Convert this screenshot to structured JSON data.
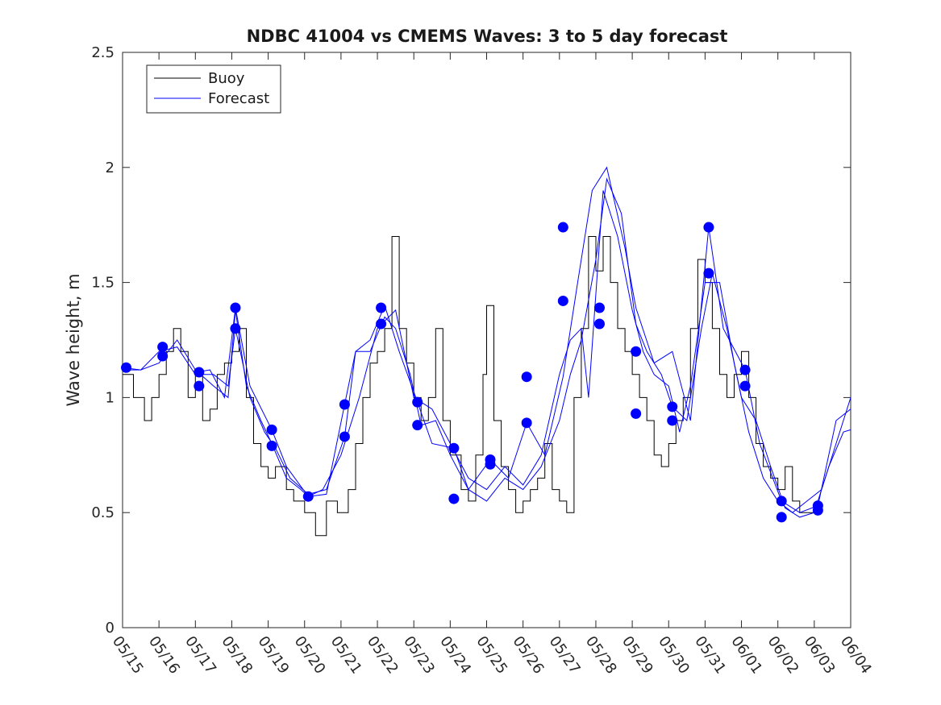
{
  "chart_data": {
    "type": "line",
    "title": "NDBC 41004 vs CMEMS Waves: 3 to 5 day forecast",
    "xlabel": "",
    "ylabel": "Wave height, m",
    "x_start": "05/15",
    "x_end": "06/04",
    "xlim_days": [
      0,
      20
    ],
    "ylim": [
      0,
      2.5
    ],
    "y_ticks": [
      0,
      0.5,
      1,
      1.5,
      2,
      2.5
    ],
    "y_tick_labels": [
      "0",
      "0.5",
      "1",
      "1.5",
      "2",
      "2.5"
    ],
    "x_tick_labels": [
      "05/15",
      "05/16",
      "05/17",
      "05/18",
      "05/19",
      "05/20",
      "05/21",
      "05/22",
      "05/23",
      "05/24",
      "05/25",
      "05/26",
      "05/27",
      "05/28",
      "05/29",
      "05/30",
      "05/31",
      "06/01",
      "06/02",
      "06/03",
      "06/04"
    ],
    "grid": false,
    "legend": {
      "placement": "top-left",
      "entries": [
        {
          "label": "Buoy",
          "color": "#000000"
        },
        {
          "label": "Forecast",
          "color": "#0000ff"
        }
      ]
    },
    "colors": {
      "buoy": "#000000",
      "forecast": "#0000ff"
    },
    "buoy": {
      "name": "Buoy",
      "points": [
        [
          0,
          1.1
        ],
        [
          0.3,
          1.0
        ],
        [
          0.6,
          0.9
        ],
        [
          0.8,
          1.0
        ],
        [
          1.0,
          1.1
        ],
        [
          1.2,
          1.2
        ],
        [
          1.4,
          1.3
        ],
        [
          1.6,
          1.2
        ],
        [
          1.8,
          1.0
        ],
        [
          2.0,
          1.1
        ],
        [
          2.2,
          0.9
        ],
        [
          2.4,
          0.95
        ],
        [
          2.6,
          1.1
        ],
        [
          2.8,
          1.15
        ],
        [
          3.0,
          1.2
        ],
        [
          3.2,
          1.3
        ],
        [
          3.4,
          1.0
        ],
        [
          3.6,
          0.8
        ],
        [
          3.8,
          0.7
        ],
        [
          4.0,
          0.65
        ],
        [
          4.2,
          0.7
        ],
        [
          4.5,
          0.6
        ],
        [
          4.7,
          0.55
        ],
        [
          5.0,
          0.5
        ],
        [
          5.3,
          0.4
        ],
        [
          5.6,
          0.55
        ],
        [
          5.9,
          0.5
        ],
        [
          6.2,
          0.6
        ],
        [
          6.4,
          0.8
        ],
        [
          6.6,
          1.0
        ],
        [
          6.8,
          1.15
        ],
        [
          7.0,
          1.2
        ],
        [
          7.2,
          1.3
        ],
        [
          7.4,
          1.7
        ],
        [
          7.6,
          1.3
        ],
        [
          7.8,
          1.15
        ],
        [
          8.0,
          1.0
        ],
        [
          8.2,
          0.9
        ],
        [
          8.4,
          1.0
        ],
        [
          8.6,
          1.3
        ],
        [
          8.8,
          0.9
        ],
        [
          9.0,
          0.75
        ],
        [
          9.3,
          0.6
        ],
        [
          9.5,
          0.55
        ],
        [
          9.7,
          0.75
        ],
        [
          9.9,
          1.1
        ],
        [
          10.0,
          1.4
        ],
        [
          10.2,
          0.9
        ],
        [
          10.4,
          0.7
        ],
        [
          10.6,
          0.6
        ],
        [
          10.8,
          0.5
        ],
        [
          11.0,
          0.55
        ],
        [
          11.2,
          0.6
        ],
        [
          11.4,
          0.65
        ],
        [
          11.6,
          0.8
        ],
        [
          11.8,
          0.6
        ],
        [
          12.0,
          0.55
        ],
        [
          12.2,
          0.5
        ],
        [
          12.4,
          1.0
        ],
        [
          12.6,
          1.3
        ],
        [
          12.8,
          1.7
        ],
        [
          13.0,
          1.55
        ],
        [
          13.2,
          1.7
        ],
        [
          13.4,
          1.5
        ],
        [
          13.6,
          1.3
        ],
        [
          13.8,
          1.2
        ],
        [
          14.0,
          1.1
        ],
        [
          14.2,
          1.0
        ],
        [
          14.4,
          0.9
        ],
        [
          14.6,
          0.75
        ],
        [
          14.8,
          0.7
        ],
        [
          15.0,
          0.8
        ],
        [
          15.2,
          0.9
        ],
        [
          15.4,
          1.0
        ],
        [
          15.6,
          1.3
        ],
        [
          15.8,
          1.6
        ],
        [
          16.0,
          1.5
        ],
        [
          16.2,
          1.3
        ],
        [
          16.4,
          1.1
        ],
        [
          16.6,
          1.0
        ],
        [
          16.8,
          1.1
        ],
        [
          17.0,
          1.2
        ],
        [
          17.2,
          1.0
        ],
        [
          17.4,
          0.8
        ],
        [
          17.6,
          0.7
        ],
        [
          17.8,
          0.65
        ],
        [
          18.0,
          0.6
        ],
        [
          18.2,
          0.7
        ],
        [
          18.4,
          0.55
        ],
        [
          18.6,
          0.5
        ],
        [
          18.8,
          0.5
        ],
        [
          19.0,
          0.5
        ],
        [
          19.2,
          0.5
        ]
      ]
    },
    "forecast_series": [
      {
        "name": "Forecast",
        "points": [
          [
            0,
            1.13
          ],
          [
            0.5,
            1.12
          ],
          [
            1.0,
            1.15
          ],
          [
            1.5,
            1.25
          ],
          [
            2.0,
            1.12
          ],
          [
            2.5,
            1.05
          ],
          [
            2.9,
            1.0
          ],
          [
            3.1,
            1.38
          ],
          [
            3.4,
            1.05
          ],
          [
            3.8,
            0.9
          ],
          [
            4.1,
            0.8
          ],
          [
            4.5,
            0.65
          ],
          [
            4.9,
            0.6
          ],
          [
            5.1,
            0.57
          ],
          [
            5.5,
            0.6
          ],
          [
            6.0,
            0.75
          ],
          [
            6.5,
            1.0
          ],
          [
            7.0,
            1.3
          ],
          [
            7.5,
            1.38
          ],
          [
            8.0,
            1.0
          ],
          [
            8.2,
            0.98
          ],
          [
            8.5,
            0.95
          ],
          [
            9.0,
            0.8
          ],
          [
            9.5,
            0.65
          ],
          [
            10.0,
            0.6
          ],
          [
            10.5,
            0.7
          ],
          [
            11.0,
            0.62
          ],
          [
            11.5,
            0.75
          ],
          [
            12.0,
            1.1
          ],
          [
            12.3,
            1.25
          ],
          [
            12.6,
            1.3
          ],
          [
            12.8,
            1.0
          ],
          [
            13.2,
            1.9
          ],
          [
            13.6,
            1.7
          ],
          [
            14.0,
            1.38
          ],
          [
            14.3,
            1.2
          ],
          [
            14.6,
            1.1
          ],
          [
            15.0,
            1.05
          ],
          [
            15.3,
            0.85
          ],
          [
            15.6,
            1.05
          ],
          [
            16.0,
            1.5
          ],
          [
            16.4,
            1.5
          ],
          [
            16.8,
            1.15
          ],
          [
            17.2,
            0.85
          ],
          [
            17.6,
            0.65
          ],
          [
            18.0,
            0.55
          ],
          [
            18.4,
            0.5
          ],
          [
            18.8,
            0.55
          ],
          [
            19.2,
            0.6
          ],
          [
            19.6,
            0.8
          ],
          [
            20.0,
            1.0
          ]
        ]
      },
      {
        "name": "Forecast",
        "points": [
          [
            0,
            1.12
          ],
          [
            0.5,
            1.12
          ],
          [
            1.0,
            1.2
          ],
          [
            1.5,
            1.22
          ],
          [
            2.0,
            1.1
          ],
          [
            2.5,
            1.1
          ],
          [
            2.9,
            1.05
          ],
          [
            3.1,
            1.3
          ],
          [
            3.5,
            1.0
          ],
          [
            3.9,
            0.85
          ],
          [
            4.2,
            0.78
          ],
          [
            4.6,
            0.65
          ],
          [
            5.1,
            0.58
          ],
          [
            5.6,
            0.6
          ],
          [
            6.1,
            0.83
          ],
          [
            6.4,
            1.2
          ],
          [
            6.8,
            1.2
          ],
          [
            7.2,
            1.35
          ],
          [
            7.5,
            1.3
          ],
          [
            7.9,
            1.1
          ],
          [
            8.2,
            0.88
          ],
          [
            8.6,
            0.9
          ],
          [
            9.0,
            0.75
          ],
          [
            9.5,
            0.6
          ],
          [
            10.0,
            0.55
          ],
          [
            10.5,
            0.65
          ],
          [
            11.0,
            0.6
          ],
          [
            11.5,
            0.7
          ],
          [
            12.0,
            0.9
          ],
          [
            12.3,
            1.1
          ],
          [
            12.6,
            1.25
          ],
          [
            13.0,
            1.6
          ],
          [
            13.3,
            1.95
          ],
          [
            13.7,
            1.8
          ],
          [
            14.1,
            1.32
          ],
          [
            14.4,
            1.2
          ],
          [
            14.8,
            1.1
          ],
          [
            15.1,
            0.96
          ],
          [
            15.5,
            0.9
          ],
          [
            15.9,
            1.3
          ],
          [
            16.2,
            1.54
          ],
          [
            16.6,
            1.3
          ],
          [
            17.0,
            1.0
          ],
          [
            17.4,
            0.9
          ],
          [
            17.8,
            0.7
          ],
          [
            18.2,
            0.52
          ],
          [
            18.6,
            0.48
          ],
          [
            19.0,
            0.5
          ],
          [
            19.4,
            0.7
          ],
          [
            19.8,
            0.85
          ],
          [
            20.0,
            0.86
          ]
        ]
      },
      {
        "name": "Forecast",
        "points": [
          [
            2.0,
            1.11
          ],
          [
            2.4,
            1.12
          ],
          [
            2.8,
            1.0
          ],
          [
            3.1,
            1.39
          ],
          [
            3.5,
            1.05
          ],
          [
            4.1,
            0.86
          ],
          [
            4.5,
            0.7
          ],
          [
            5.1,
            0.57
          ],
          [
            5.6,
            0.58
          ],
          [
            6.1,
            0.97
          ],
          [
            6.4,
            1.2
          ],
          [
            6.8,
            1.25
          ],
          [
            7.2,
            1.4
          ],
          [
            7.6,
            1.2
          ],
          [
            8.1,
            0.98
          ],
          [
            8.5,
            0.8
          ],
          [
            9.1,
            0.78
          ],
          [
            9.5,
            0.6
          ],
          [
            10.1,
            0.73
          ],
          [
            10.6,
            0.65
          ],
          [
            11.1,
            0.89
          ],
          [
            11.6,
            0.75
          ],
          [
            12.1,
            1.09
          ],
          [
            12.5,
            1.5
          ],
          [
            12.9,
            1.9
          ],
          [
            13.3,
            2.0
          ],
          [
            13.8,
            1.65
          ],
          [
            14.1,
            1.39
          ],
          [
            14.6,
            1.15
          ],
          [
            15.1,
            1.2
          ],
          [
            15.6,
            0.9
          ],
          [
            16.1,
            1.74
          ],
          [
            16.5,
            1.3
          ],
          [
            17.1,
            1.12
          ],
          [
            17.5,
            0.8
          ],
          [
            18.1,
            0.55
          ],
          [
            18.6,
            0.5
          ],
          [
            19.1,
            0.53
          ],
          [
            19.6,
            0.9
          ],
          [
            20.0,
            0.95
          ]
        ]
      }
    ],
    "markers": [
      [
        0.1,
        1.13
      ],
      [
        1.1,
        1.22
      ],
      [
        1.1,
        1.18
      ],
      [
        2.1,
        1.11
      ],
      [
        2.1,
        1.05
      ],
      [
        3.1,
        1.39
      ],
      [
        3.1,
        1.3
      ],
      [
        4.1,
        0.86
      ],
      [
        4.1,
        0.79
      ],
      [
        5.1,
        0.57
      ],
      [
        6.1,
        0.97
      ],
      [
        6.1,
        0.83
      ],
      [
        7.1,
        1.39
      ],
      [
        7.1,
        1.32
      ],
      [
        8.1,
        0.98
      ],
      [
        8.1,
        0.88
      ],
      [
        9.1,
        0.78
      ],
      [
        9.1,
        0.56
      ],
      [
        10.1,
        0.73
      ],
      [
        10.1,
        0.71
      ],
      [
        11.1,
        1.09
      ],
      [
        11.1,
        0.89
      ],
      [
        12.1,
        1.74
      ],
      [
        12.1,
        1.42
      ],
      [
        13.1,
        1.39
      ],
      [
        13.1,
        1.32
      ],
      [
        14.1,
        1.2
      ],
      [
        14.1,
        0.93
      ],
      [
        15.1,
        0.96
      ],
      [
        15.1,
        0.9
      ],
      [
        16.1,
        1.74
      ],
      [
        16.1,
        1.54
      ],
      [
        17.1,
        1.12
      ],
      [
        17.1,
        1.05
      ],
      [
        18.1,
        0.55
      ],
      [
        18.1,
        0.48
      ],
      [
        19.1,
        0.53
      ],
      [
        19.1,
        0.51
      ]
    ]
  }
}
